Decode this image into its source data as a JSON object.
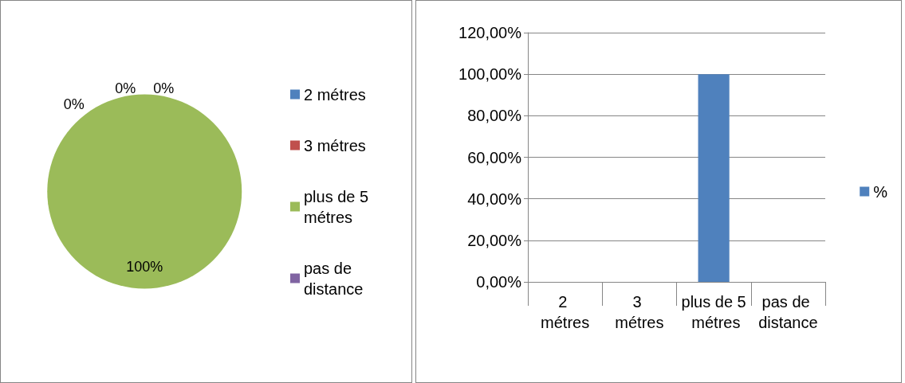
{
  "chart_data": [
    {
      "type": "pie",
      "categories": [
        "2 métres",
        "3 métres",
        "plus de 5 métres",
        "pas de distance"
      ],
      "values": [
        0,
        0,
        100,
        0
      ],
      "colors": [
        "#4f81bd",
        "#c0504d",
        "#9bbb59",
        "#8064a2"
      ],
      "value_labels": [
        "0%",
        "0%",
        "100%",
        "0%"
      ],
      "legend": "right"
    },
    {
      "type": "bar",
      "categories": [
        "2 métres",
        "3 métres",
        "plus de 5 métres",
        "pas de distance"
      ],
      "series": [
        {
          "name": "%",
          "color": "#4f81bd",
          "values": [
            0,
            0,
            100,
            0
          ]
        }
      ],
      "ylim": [
        0,
        120
      ],
      "yticks": [
        {
          "value": 0,
          "label": "0,00%"
        },
        {
          "value": 20,
          "label": "20,00%"
        },
        {
          "value": 40,
          "label": "40,00%"
        },
        {
          "value": 60,
          "label": "60,00%"
        },
        {
          "value": 80,
          "label": "80,00%"
        },
        {
          "value": 100,
          "label": "100,00%"
        },
        {
          "value": 120,
          "label": "120,00%"
        }
      ],
      "grid": "y",
      "legend": "right"
    }
  ]
}
